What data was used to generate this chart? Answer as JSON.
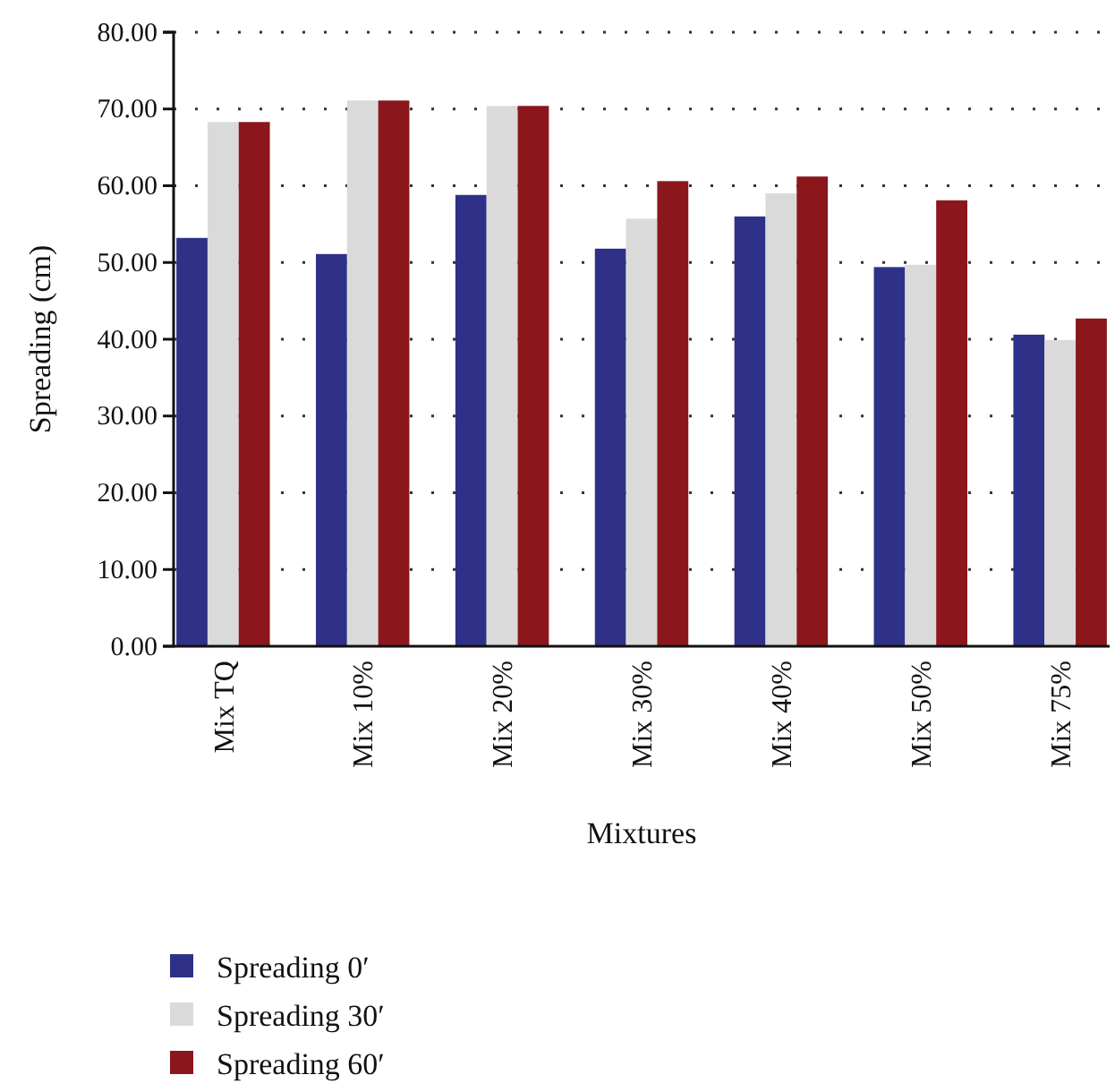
{
  "chart_data": {
    "type": "bar",
    "xlabel": "Mixtures",
    "ylabel": "Spreading (cm)",
    "categories": [
      "Mix TQ",
      "Mix 10%",
      "Mix 20%",
      "Mix 30%",
      "Mix 40%",
      "Mix 50%",
      "Mix 75%"
    ],
    "series": [
      {
        "name": "Spreading 0′",
        "color": "#2e3187",
        "values": [
          53.2,
          51.1,
          58.8,
          51.8,
          56.0,
          49.4,
          40.6
        ]
      },
      {
        "name": "Spreading 30′",
        "color": "#dadada",
        "values": [
          68.3,
          71.1,
          70.4,
          55.7,
          59.0,
          49.7,
          39.9
        ]
      },
      {
        "name": "Spreading 60′",
        "color": "#8b171c",
        "values": [
          68.3,
          71.1,
          70.4,
          60.6,
          61.2,
          58.1,
          42.7
        ]
      }
    ],
    "ylim": [
      0,
      80
    ],
    "yticks": [
      {
        "value": 0,
        "label": "0.00"
      },
      {
        "value": 10,
        "label": "10.00"
      },
      {
        "value": 20,
        "label": "20.00"
      },
      {
        "value": 30,
        "label": "30.00"
      },
      {
        "value": 40,
        "label": "40.00"
      },
      {
        "value": 50,
        "label": "50.00"
      },
      {
        "value": 60,
        "label": "60.00"
      },
      {
        "value": 70,
        "label": "70.00"
      },
      {
        "value": 80,
        "label": "80.00"
      }
    ],
    "grid": "y",
    "legend": "bottom left"
  }
}
